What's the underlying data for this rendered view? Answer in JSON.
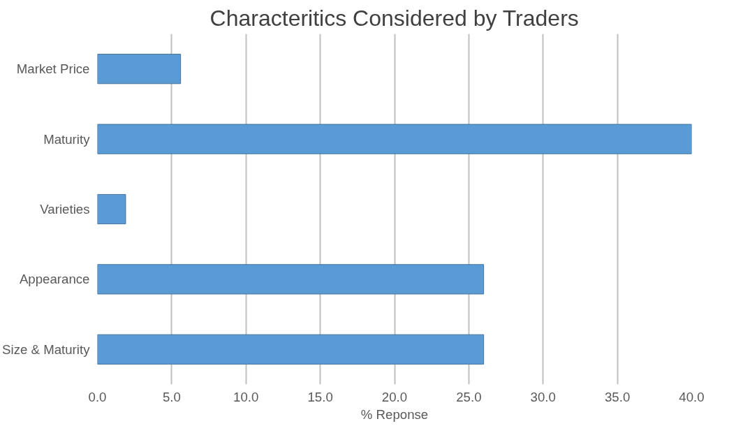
{
  "chart_data": {
    "type": "bar",
    "orientation": "horizontal",
    "title": "Characteritics Considered by Traders",
    "xlabel": "% Reponse",
    "categories": [
      "Market Price",
      "Maturity",
      "Varieties",
      "Appearance",
      "Size & Maturity"
    ],
    "values": [
      5.6,
      40.0,
      1.9,
      26.0,
      26.0
    ],
    "color": "#5b9bd5",
    "xlim": [
      0,
      40
    ],
    "xticks": [
      {
        "value": 0,
        "label": "0.0"
      },
      {
        "value": 5,
        "label": "5.0"
      },
      {
        "value": 10,
        "label": "10.0"
      },
      {
        "value": 15,
        "label": "15.0"
      },
      {
        "value": 20,
        "label": "20.0"
      },
      {
        "value": 25,
        "label": "25.0"
      },
      {
        "value": 30,
        "label": "30.0"
      },
      {
        "value": 35,
        "label": "35.0"
      },
      {
        "value": 40,
        "label": "40.0"
      }
    ],
    "grid": "x"
  }
}
